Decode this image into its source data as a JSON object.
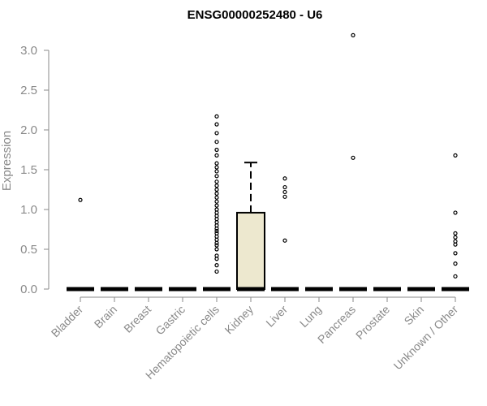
{
  "chart_data": {
    "type": "box",
    "title": "ENSG00000252480 - U6",
    "ylabel": "Expression",
    "xlabel": "",
    "ylim": [
      0,
      3.2
    ],
    "yticks": [
      0.0,
      0.5,
      1.0,
      1.5,
      2.0,
      2.5,
      3.0
    ],
    "ytick_labels": [
      "0.0",
      "0.5",
      "1.0",
      "1.5",
      "2.0",
      "2.5",
      "3.0"
    ],
    "grid": false,
    "colors": {
      "box_fill": "#ede8cf",
      "stroke": "#000000",
      "axis": "#8a8a8a"
    },
    "categories": [
      "Bladder",
      "Brain",
      "Breast",
      "Gastric",
      "Hematopoietic cells",
      "Kidney",
      "Liver",
      "Lung",
      "Pancreas",
      "Prostate",
      "Skin",
      "Unknown / Other"
    ],
    "boxes": [
      {
        "category": "Bladder",
        "q1": 0,
        "median": 0,
        "q3": 0,
        "whisker_low": 0,
        "whisker_high": 0,
        "outliers": [
          1.12
        ]
      },
      {
        "category": "Brain",
        "q1": 0,
        "median": 0,
        "q3": 0,
        "whisker_low": 0,
        "whisker_high": 0,
        "outliers": []
      },
      {
        "category": "Breast",
        "q1": 0,
        "median": 0,
        "q3": 0,
        "whisker_low": 0,
        "whisker_high": 0,
        "outliers": []
      },
      {
        "category": "Gastric",
        "q1": 0,
        "median": 0,
        "q3": 0,
        "whisker_low": 0,
        "whisker_high": 0,
        "outliers": []
      },
      {
        "category": "Hematopoietic cells",
        "q1": 0,
        "median": 0,
        "q3": 0,
        "whisker_low": 0,
        "whisker_high": 0,
        "outliers": [
          0.22,
          0.3,
          0.38,
          0.42,
          0.5,
          0.55,
          0.58,
          0.62,
          0.66,
          0.7,
          0.73,
          0.76,
          0.8,
          0.84,
          0.88,
          0.92,
          0.96,
          1.0,
          1.05,
          1.1,
          1.15,
          1.2,
          1.25,
          1.3,
          1.35,
          1.42,
          1.48,
          1.53,
          1.58,
          1.68,
          1.75,
          1.85,
          1.96,
          2.07,
          2.17
        ]
      },
      {
        "category": "Kidney",
        "q1": 0,
        "median": 0,
        "q3": 0.96,
        "whisker_low": 0,
        "whisker_high": 1.59,
        "outliers": []
      },
      {
        "category": "Liver",
        "q1": 0,
        "median": 0,
        "q3": 0,
        "whisker_low": 0,
        "whisker_high": 0,
        "outliers": [
          0.61,
          1.16,
          1.22,
          1.28,
          1.39
        ]
      },
      {
        "category": "Lung",
        "q1": 0,
        "median": 0,
        "q3": 0,
        "whisker_low": 0,
        "whisker_high": 0,
        "outliers": []
      },
      {
        "category": "Pancreas",
        "q1": 0,
        "median": 0,
        "q3": 0,
        "whisker_low": 0,
        "whisker_high": 0,
        "outliers": [
          1.65,
          3.19
        ]
      },
      {
        "category": "Prostate",
        "q1": 0,
        "median": 0,
        "q3": 0,
        "whisker_low": 0,
        "whisker_high": 0,
        "outliers": []
      },
      {
        "category": "Skin",
        "q1": 0,
        "median": 0,
        "q3": 0,
        "whisker_low": 0,
        "whisker_high": 0,
        "outliers": []
      },
      {
        "category": "Unknown / Other",
        "q1": 0,
        "median": 0,
        "q3": 0,
        "whisker_low": 0,
        "whisker_high": 0,
        "outliers": [
          0.16,
          0.32,
          0.45,
          0.56,
          0.6,
          0.65,
          0.7,
          0.96,
          1.68
        ]
      }
    ]
  }
}
